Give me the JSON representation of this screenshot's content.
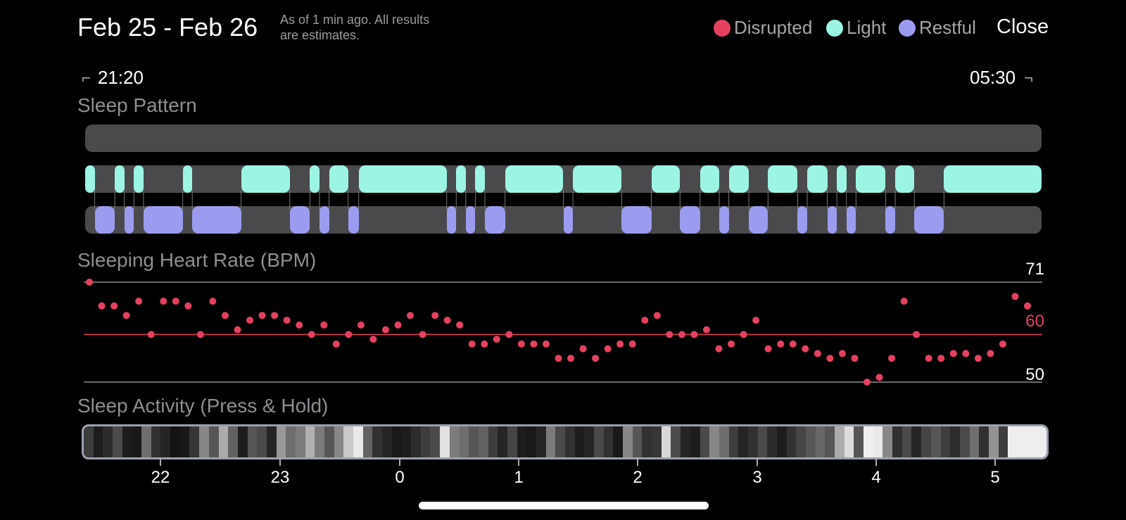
{
  "header": {
    "date_range": "Feb 25 - Feb 26",
    "status_line1": "As of 1 min ago. All results",
    "status_line2": "are estimates.",
    "close_label": "Close"
  },
  "legend": [
    {
      "label": "Disrupted",
      "color": "#e5415e"
    },
    {
      "label": "Light",
      "color": "#9cf5e3"
    },
    {
      "label": "Restful",
      "color": "#9b9cf0"
    }
  ],
  "time_range": {
    "start": "21:20",
    "end": "05:30"
  },
  "sleep_pattern": {
    "title": "Sleep Pattern",
    "light_segments": [
      [
        0,
        0.01
      ],
      [
        0.031,
        0.041
      ],
      [
        0.051,
        0.061
      ],
      [
        0.102,
        0.112
      ],
      [
        0.163,
        0.214
      ],
      [
        0.235,
        0.245
      ],
      [
        0.255,
        0.275
      ],
      [
        0.286,
        0.378
      ],
      [
        0.388,
        0.398
      ],
      [
        0.408,
        0.418
      ],
      [
        0.439,
        0.5
      ],
      [
        0.51,
        0.561
      ],
      [
        0.592,
        0.622
      ],
      [
        0.643,
        0.663
      ],
      [
        0.673,
        0.694
      ],
      [
        0.714,
        0.745
      ],
      [
        0.755,
        0.776
      ],
      [
        0.786,
        0.796
      ],
      [
        0.806,
        0.837
      ],
      [
        0.847,
        0.867
      ],
      [
        0.898,
        1.0
      ]
    ],
    "restful_segments": [
      [
        0.01,
        0.031
      ],
      [
        0.041,
        0.051
      ],
      [
        0.061,
        0.102
      ],
      [
        0.112,
        0.163
      ],
      [
        0.214,
        0.235
      ],
      [
        0.245,
        0.255
      ],
      [
        0.275,
        0.286
      ],
      [
        0.378,
        0.388
      ],
      [
        0.398,
        0.408
      ],
      [
        0.418,
        0.439
      ],
      [
        0.5,
        0.51
      ],
      [
        0.561,
        0.592
      ],
      [
        0.622,
        0.643
      ],
      [
        0.663,
        0.673
      ],
      [
        0.694,
        0.714
      ],
      [
        0.745,
        0.755
      ],
      [
        0.776,
        0.786
      ],
      [
        0.796,
        0.806
      ],
      [
        0.837,
        0.847
      ],
      [
        0.867,
        0.898
      ]
    ]
  },
  "heart_rate": {
    "title": "Sleeping Heart Rate (BPM)",
    "max_label": "71",
    "avg_label": "60",
    "min_label": "50",
    "unit": "BPM",
    "ylim": [
      50,
      71
    ],
    "values": [
      71,
      66,
      66,
      64,
      67,
      60,
      67,
      67,
      66,
      60,
      67,
      64,
      61,
      63,
      64,
      64,
      63,
      62,
      60,
      62,
      58,
      60,
      62,
      59,
      61,
      62,
      64,
      60,
      64,
      63,
      62,
      58,
      58,
      59,
      60,
      58,
      58,
      58,
      55,
      55,
      57,
      55,
      57,
      58,
      58,
      63,
      64,
      60,
      60,
      60,
      61,
      57,
      58,
      60,
      63,
      57,
      58,
      58,
      57,
      56,
      55,
      56,
      55,
      50,
      51,
      55,
      67,
      60,
      55,
      55,
      56,
      56,
      55,
      56,
      58,
      68,
      66
    ]
  },
  "sleep_activity": {
    "title": "Sleep Activity (Press & Hold)",
    "levels": [
      0.25,
      0.12,
      0.18,
      0.3,
      0.12,
      0.1,
      0.45,
      0.2,
      0.15,
      0.08,
      0.1,
      0.22,
      0.55,
      0.35,
      0.7,
      0.4,
      0.12,
      0.35,
      0.3,
      0.15,
      0.62,
      0.45,
      0.5,
      0.72,
      0.5,
      0.35,
      0.55,
      0.82,
      0.95,
      0.4,
      0.2,
      0.15,
      0.1,
      0.12,
      0.18,
      0.25,
      0.3,
      0.92,
      0.5,
      0.45,
      0.35,
      0.4,
      0.25,
      0.15,
      0.28,
      0.12,
      0.1,
      0.15,
      0.5,
      0.3,
      0.2,
      0.12,
      0.15,
      0.3,
      0.2,
      0.1,
      0.55,
      0.35,
      0.2,
      0.22,
      0.88,
      0.3,
      0.15,
      0.12,
      0.3,
      0.55,
      0.45,
      0.25,
      0.15,
      0.2,
      0.3,
      0.18,
      0.12,
      0.2,
      0.28,
      0.35,
      0.42,
      0.35,
      0.7,
      0.9,
      0.35,
      0.98,
      0.95,
      0.55,
      0.2,
      0.3,
      0.15,
      0.28,
      0.35,
      0.25,
      0.18,
      0.3,
      0.45,
      0.2,
      0.6,
      0.25,
      0.97,
      0.97,
      0.97,
      0.97
    ]
  },
  "x_ticks": [
    "22",
    "23",
    "0",
    "1",
    "2",
    "3",
    "4",
    "5"
  ]
}
